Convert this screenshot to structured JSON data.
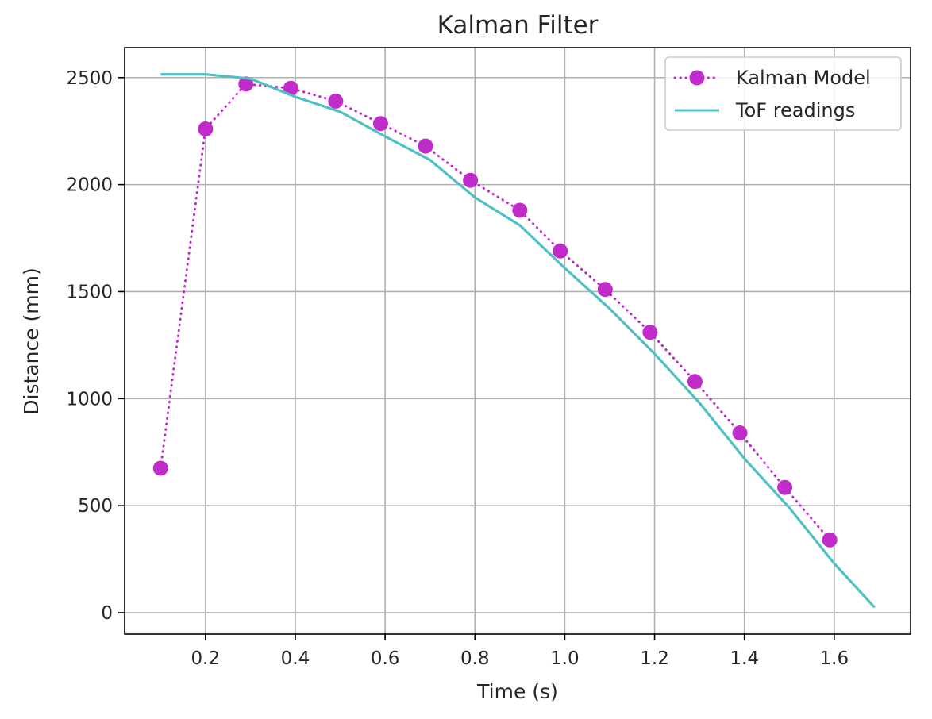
{
  "chart_data": {
    "type": "line",
    "title": "Kalman Filter",
    "xlabel": "Time (s)",
    "ylabel": "Distance (mm)",
    "xlim": [
      0.02,
      1.77
    ],
    "ylim": [
      -100,
      2640
    ],
    "xticks": [
      0.2,
      0.4,
      0.6,
      0.8,
      1.0,
      1.2,
      1.4,
      1.6
    ],
    "xtick_labels": [
      "0.2",
      "0.4",
      "0.6",
      "0.8",
      "1.0",
      "1.2",
      "1.4",
      "1.6"
    ],
    "yticks": [
      0,
      500,
      1000,
      1500,
      2000,
      2500
    ],
    "ytick_labels": [
      "0",
      "500",
      "1000",
      "1500",
      "2000",
      "2500"
    ],
    "grid": true,
    "legend_position": "top-right",
    "series": [
      {
        "name": "Kalman Model",
        "color": "#bf2cc9",
        "line_style": "dotted",
        "marker": "circle",
        "x": [
          0.1,
          0.2,
          0.29,
          0.39,
          0.49,
          0.59,
          0.69,
          0.79,
          0.9,
          0.99,
          1.09,
          1.19,
          1.29,
          1.39,
          1.49,
          1.59
        ],
        "y": [
          675,
          2260,
          2470,
          2450,
          2390,
          2285,
          2180,
          2020,
          1880,
          1690,
          1510,
          1310,
          1080,
          840,
          585,
          340
        ]
      },
      {
        "name": "ToF readings",
        "color": "#4fc0c3",
        "line_style": "solid",
        "marker": "none",
        "x": [
          0.1,
          0.2,
          0.3,
          0.4,
          0.5,
          0.6,
          0.7,
          0.8,
          0.9,
          1.0,
          1.1,
          1.2,
          1.3,
          1.4,
          1.5,
          1.6,
          1.69
        ],
        "y": [
          2515,
          2515,
          2495,
          2410,
          2340,
          2225,
          2115,
          1940,
          1810,
          1610,
          1420,
          1210,
          980,
          720,
          490,
          230,
          25
        ]
      }
    ]
  }
}
